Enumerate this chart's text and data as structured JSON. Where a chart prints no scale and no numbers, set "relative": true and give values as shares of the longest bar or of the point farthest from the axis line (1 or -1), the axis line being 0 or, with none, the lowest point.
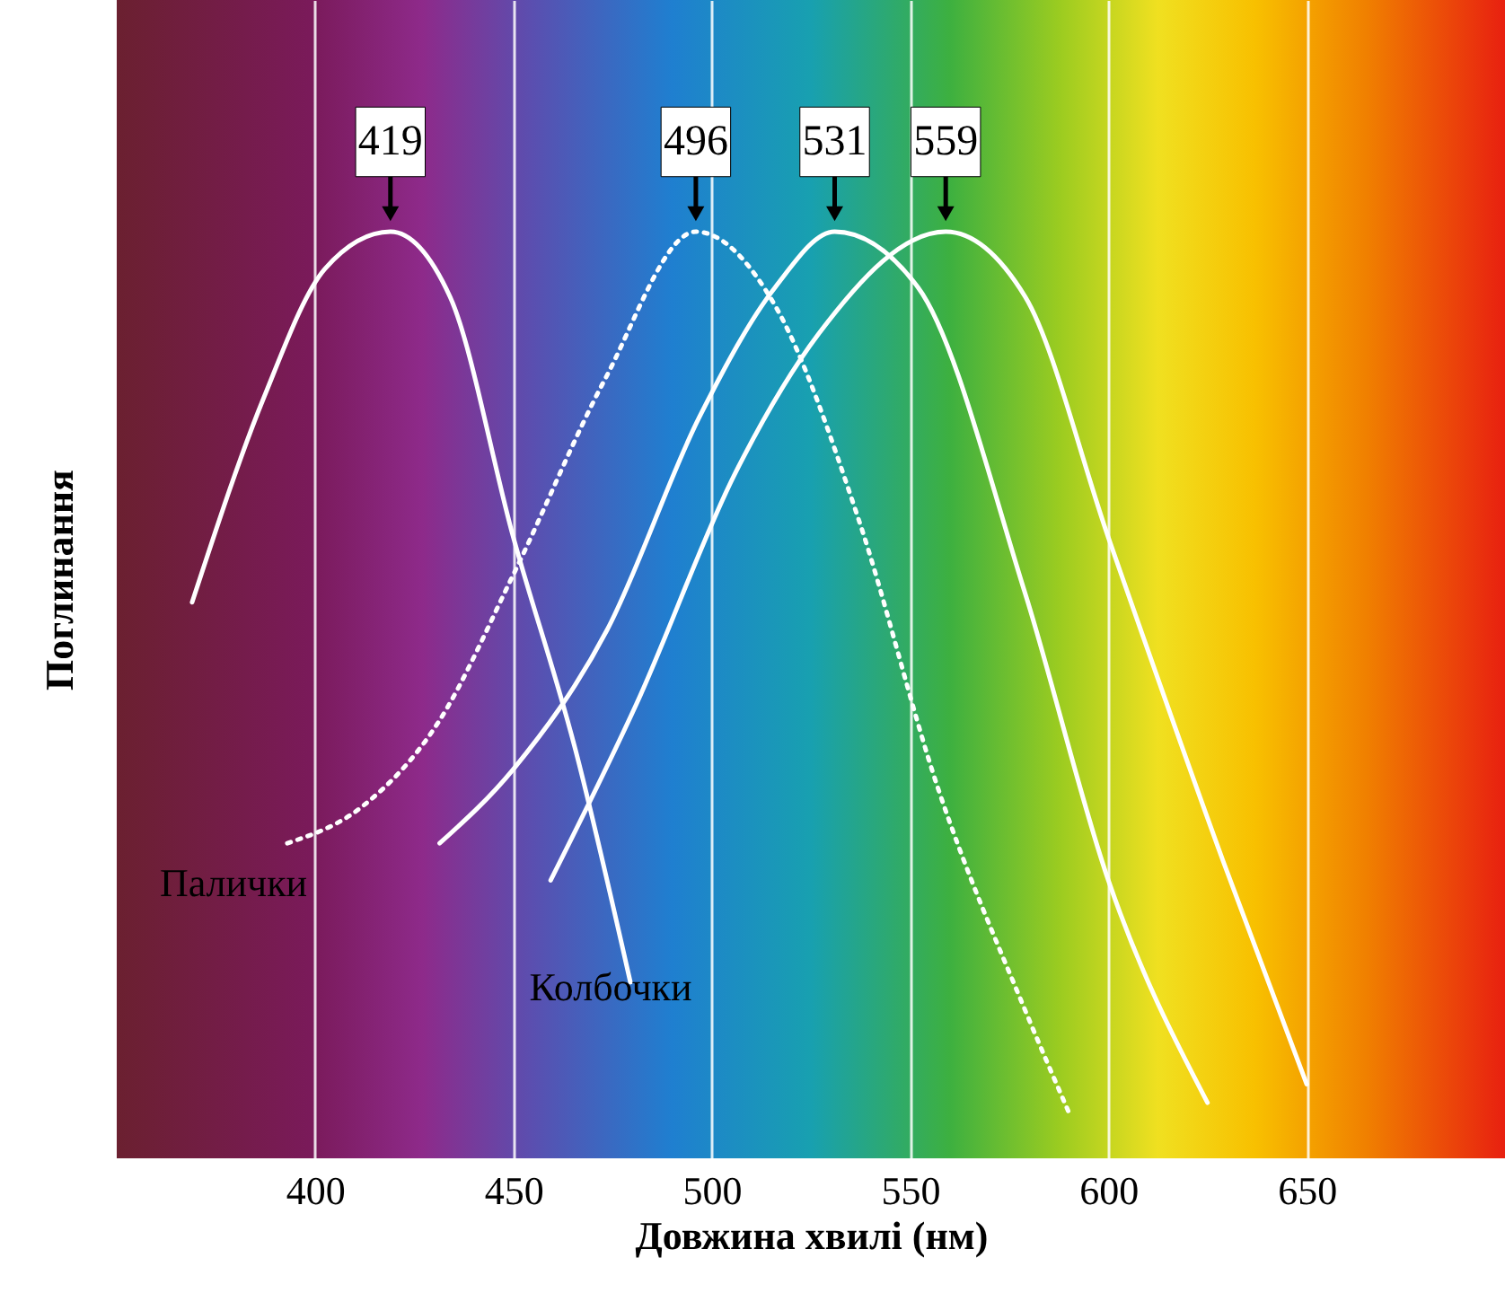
{
  "chart_data": {
    "type": "line",
    "xlabel": "Довжина хвилі (нм)",
    "ylabel": "Поглинання",
    "relative": true,
    "xlim": [
      350,
      700
    ],
    "xticks": [
      400,
      450,
      500,
      550,
      600,
      650
    ],
    "grid": "x",
    "marker": "none",
    "series": [
      {
        "color": "#ffffff",
        "line_style": "solid",
        "x": [
          369,
          387,
          402.5,
          419,
          434,
          450,
          465.7,
          479.5
        ],
        "values": [
          0.6,
          0.82,
          0.96,
          1.0,
          0.93,
          0.67,
          0.44,
          0.19
        ]
      },
      {
        "color": "#ffffff",
        "line_style": "dotted",
        "x": [
          393,
          412,
          431,
          450,
          473,
          496,
          516,
          537,
          557,
          579,
          590
        ],
        "values": [
          0.34,
          0.38,
          0.47,
          0.63,
          0.84,
          1.0,
          0.92,
          0.69,
          0.4,
          0.16,
          0.05
        ]
      },
      {
        "color": "#ffffff",
        "line_style": "solid",
        "x": [
          431.4,
          450,
          473.6,
          496.9,
          516,
          531,
          552,
          579,
          600,
          625
        ],
        "values": [
          0.34,
          0.42,
          0.57,
          0.8,
          0.94,
          1.0,
          0.94,
          0.61,
          0.3,
          0.06
        ]
      },
      {
        "color": "#ffffff",
        "line_style": "solid",
        "x": [
          459.4,
          481,
          506,
          527,
          559,
          579,
          600,
          629,
          650
        ],
        "values": [
          0.3,
          0.49,
          0.74,
          0.89,
          1.0,
          0.93,
          0.67,
          0.32,
          0.08
        ]
      }
    ],
    "annotations": [
      {
        "text": "419",
        "x": 419,
        "y": 1
      },
      {
        "text": "496",
        "x": 496,
        "y": 1
      },
      {
        "text": "531",
        "x": 531,
        "y": 1
      },
      {
        "text": "559",
        "x": 559,
        "y": 1
      },
      "Палички",
      "Колбочки"
    ]
  }
}
